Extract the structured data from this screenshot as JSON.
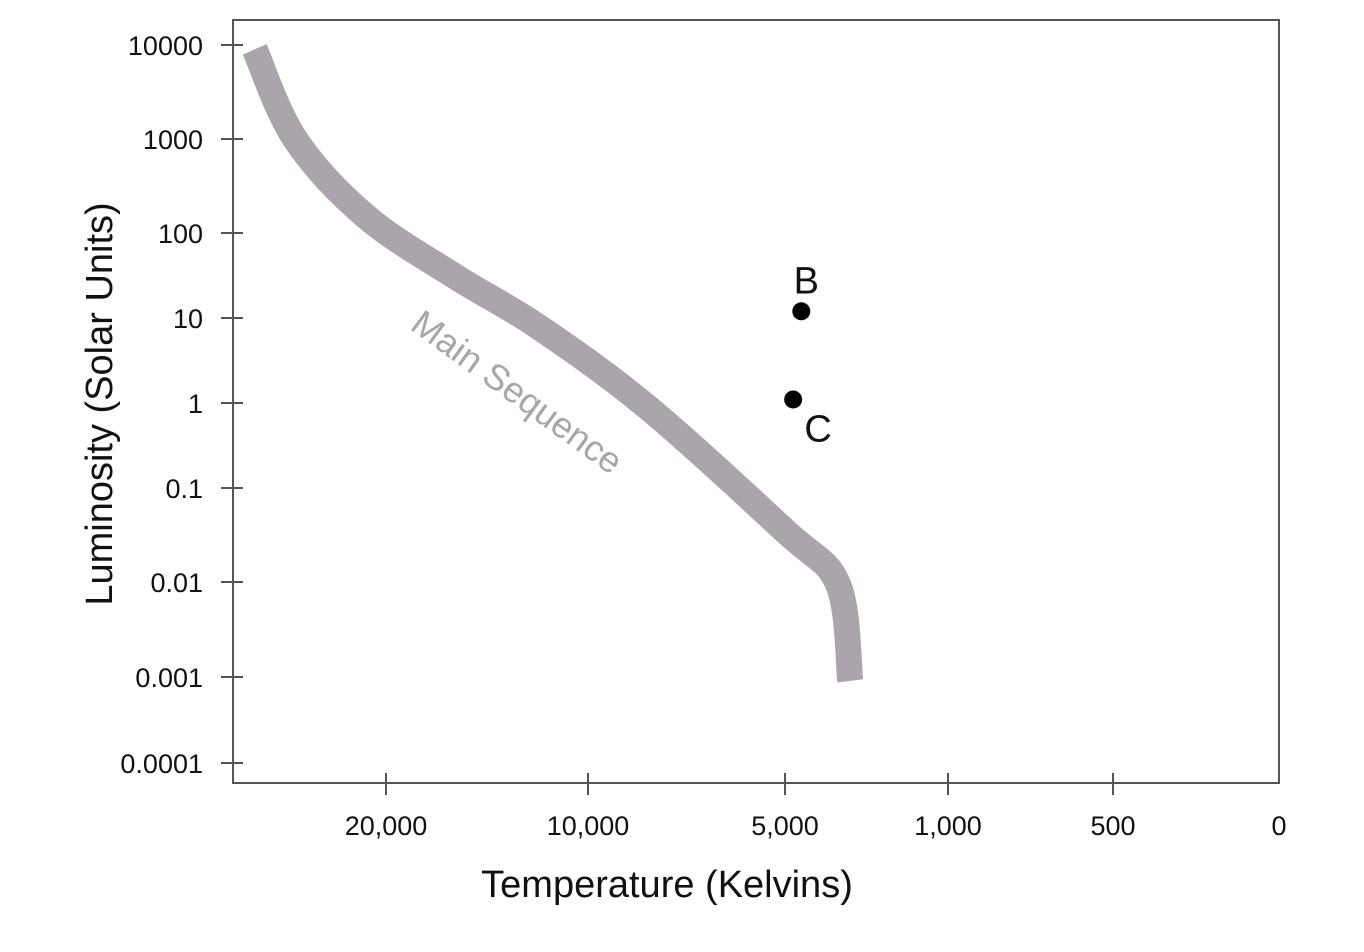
{
  "chart_data": {
    "type": "scatter",
    "title": "",
    "xlabel": "Temperature (Kelvins)",
    "ylabel": "Luminosity (Solar Units)",
    "y_scale": "log",
    "y_ticks": [
      {
        "value": 10000,
        "label": "10000"
      },
      {
        "value": 1000,
        "label": "1000"
      },
      {
        "value": 100,
        "label": "100"
      },
      {
        "value": 10,
        "label": "10"
      },
      {
        "value": 1,
        "label": "1"
      },
      {
        "value": 0.1,
        "label": "0.1"
      },
      {
        "value": 0.01,
        "label": "0.01"
      },
      {
        "value": 0.001,
        "label": "0.001"
      },
      {
        "value": 0.0001,
        "label": "0.0001"
      }
    ],
    "x_ticks": [
      {
        "value": 20000,
        "label": "20,000"
      },
      {
        "value": 10000,
        "label": "10,000"
      },
      {
        "value": 5000,
        "label": "5,000"
      },
      {
        "value": 1000,
        "label": "1,000"
      },
      {
        "value": 500,
        "label": "500"
      },
      {
        "value": 0,
        "label": "0"
      }
    ],
    "points": [
      {
        "label": "B",
        "temperature": 4600,
        "luminosity": 12
      },
      {
        "label": "C",
        "temperature": 4800,
        "luminosity": 1.1
      }
    ],
    "band": {
      "label": "Main Sequence",
      "color": "#aaa4ab",
      "curve": [
        {
          "temperature": 26500,
          "luminosity": 9000
        },
        {
          "temperature": 24500,
          "luminosity": 1000
        },
        {
          "temperature": 21000,
          "luminosity": 150
        },
        {
          "temperature": 16500,
          "luminosity": 30
        },
        {
          "temperature": 12500,
          "luminosity": 8
        },
        {
          "temperature": 8500,
          "luminosity": 0.9
        },
        {
          "temperature": 5000,
          "luminosity": 0.035
        },
        {
          "temperature": 3700,
          "luminosity": 0.0095
        },
        {
          "temperature": 3400,
          "luminosity": 0.0009
        }
      ]
    },
    "colors": {
      "axis": "#555555",
      "point": "#000000",
      "band_label": "#aaa4ab"
    },
    "grid": false
  }
}
